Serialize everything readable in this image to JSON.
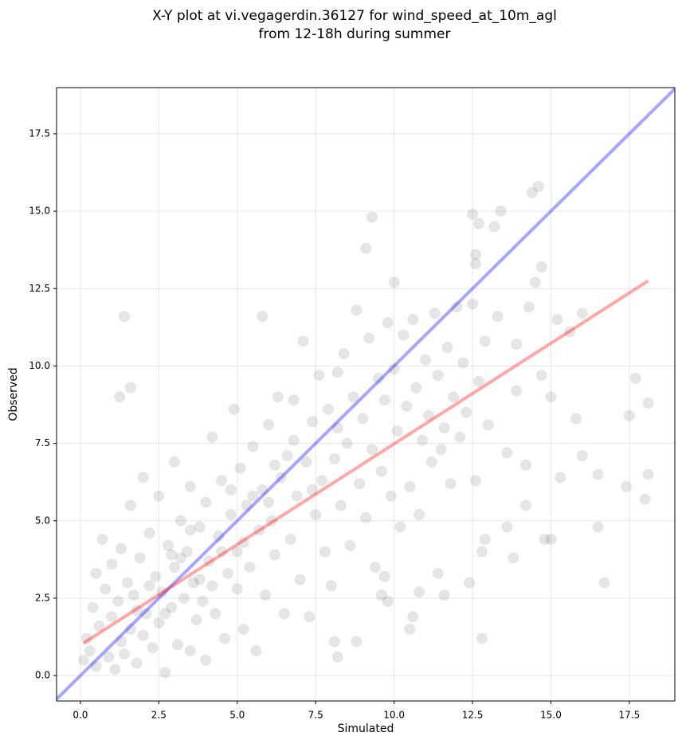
{
  "chart_data": {
    "type": "scatter",
    "title": [
      "X-Y plot at vi.vegagerdin.36127 for wind_speed_at_10m_agl",
      "from 12-18h during summer"
    ],
    "x_label": "Simulated",
    "y_label": "Observed",
    "xlim": [
      -0.76,
      18.95
    ],
    "ylim": [
      -0.82,
      18.99
    ],
    "xticks": [
      {
        "value": 0,
        "label": "0.0"
      },
      2.5,
      {
        "value": 5,
        "label": "5.0"
      },
      7.5,
      {
        "value": 10,
        "label": "10.0"
      },
      12.5,
      {
        "value": 15,
        "label": "15.0"
      },
      17.5
    ],
    "yticks": [
      {
        "value": 0,
        "label": "0.0"
      },
      2.5,
      {
        "value": 5,
        "label": "5.0"
      },
      7.5,
      {
        "value": 10,
        "label": "10.0"
      },
      12.5,
      {
        "value": 15,
        "label": "15.0"
      },
      17.5
    ],
    "grid": true,
    "points": {
      "color": "#000000",
      "x": [
        1.4,
        1.25,
        1.6,
        9.3,
        9.1,
        12.5,
        12.7,
        13.2,
        13.4,
        14.4,
        14.6,
        12.6,
        12.6,
        10.0,
        5.8,
        17.7,
        18.1,
        17.5,
        18.1,
        18.0,
        17.4,
        16.5,
        16.5,
        16.7,
        15.0,
        12.8,
        12.4,
        8.2,
        8.1,
        8.8,
        10.5,
        10.6,
        10.8,
        14.7,
        15.0,
        15.6,
        15.2,
        16.0,
        15.8,
        16.0,
        14.5,
        14.7,
        13.9,
        14.3,
        15.3,
        14.2,
        14.8,
        13.6,
        13.8,
        12.8,
        12.9,
        11.6,
        11.4,
        9.8,
        9.7,
        9.6,
        0.1,
        0.2,
        0.3,
        0.4,
        0.5,
        0.5,
        0.6,
        0.7,
        0.8,
        0.9,
        1.0,
        1.0,
        1.1,
        1.2,
        1.3,
        1.3,
        1.4,
        1.5,
        1.6,
        1.6,
        1.7,
        1.8,
        1.9,
        2.0,
        2.0,
        2.1,
        2.2,
        2.3,
        2.4,
        2.5,
        2.5,
        2.6,
        2.7,
        2.8,
        2.9,
        3.0,
        3.0,
        3.1,
        3.2,
        3.3,
        3.4,
        3.5,
        3.5,
        3.6,
        3.7,
        3.8,
        3.9,
        4.0,
        4.0,
        4.1,
        4.2,
        4.3,
        4.4,
        4.5,
        4.6,
        4.7,
        4.8,
        4.9,
        5.0,
        5.0,
        5.1,
        5.2,
        5.3,
        5.4,
        5.5,
        5.6,
        5.7,
        5.8,
        5.9,
        6.0,
        6.1,
        6.2,
        6.3,
        6.4,
        6.5,
        6.6,
        6.7,
        6.8,
        6.9,
        7.0,
        7.1,
        7.2,
        7.3,
        7.4,
        7.5,
        7.6,
        7.7,
        7.8,
        7.9,
        8.0,
        8.1,
        8.2,
        8.3,
        8.4,
        8.5,
        8.6,
        8.7,
        8.8,
        8.9,
        9.0,
        9.1,
        9.2,
        9.3,
        9.4,
        9.5,
        9.6,
        9.7,
        9.8,
        9.9,
        10.0,
        10.1,
        10.2,
        10.3,
        10.4,
        10.5,
        10.6,
        10.7,
        10.8,
        10.9,
        11.0,
        11.1,
        11.2,
        11.3,
        11.4,
        11.5,
        11.6,
        11.7,
        11.8,
        11.9,
        12.0,
        12.1,
        12.2,
        12.3,
        12.5,
        12.6,
        12.7,
        12.9,
        13.0,
        13.3,
        13.6,
        13.9,
        14.2,
        2.2,
        3.2,
        2.7,
        4.5,
        5.5,
        6.2,
        3.8,
        1.8,
        2.9,
        4.2,
        5.2,
        6.0,
        6.8,
        7.4,
        8.2,
        3.5,
        4.8
      ],
      "y": [
        11.6,
        9.0,
        9.3,
        14.8,
        13.8,
        14.9,
        14.6,
        14.5,
        15.0,
        15.6,
        15.8,
        13.6,
        13.3,
        12.7,
        11.6,
        9.6,
        8.8,
        8.4,
        6.5,
        5.7,
        6.1,
        6.5,
        4.8,
        3.0,
        4.4,
        1.2,
        3.0,
        0.6,
        1.1,
        1.1,
        1.5,
        1.9,
        2.7,
        9.7,
        9.0,
        11.1,
        11.5,
        11.7,
        8.3,
        7.1,
        12.7,
        13.2,
        10.7,
        11.9,
        6.4,
        5.5,
        4.4,
        4.8,
        3.8,
        4.0,
        4.4,
        2.6,
        3.3,
        2.4,
        3.2,
        2.6,
        0.5,
        1.2,
        0.8,
        2.2,
        0.3,
        3.3,
        1.6,
        4.4,
        2.8,
        0.6,
        1.9,
        3.6,
        0.2,
        2.4,
        1.1,
        4.1,
        0.7,
        3.0,
        1.5,
        5.5,
        2.6,
        0.4,
        3.8,
        1.3,
        6.4,
        2.0,
        4.6,
        0.9,
        3.2,
        5.8,
        1.7,
        2.7,
        0.1,
        4.2,
        2.2,
        6.9,
        3.5,
        1.0,
        5.0,
        2.5,
        4.0,
        0.8,
        6.1,
        3.0,
        1.8,
        4.8,
        2.4,
        5.6,
        0.5,
        3.7,
        7.7,
        2.0,
        4.5,
        6.3,
        1.2,
        3.3,
        5.2,
        8.6,
        2.8,
        4.0,
        6.7,
        1.5,
        5.5,
        3.5,
        7.4,
        0.8,
        4.7,
        6.0,
        2.6,
        8.1,
        5.0,
        3.9,
        9.0,
        6.4,
        2.0,
        7.1,
        4.4,
        8.9,
        5.8,
        3.1,
        10.8,
        6.9,
        1.9,
        8.2,
        5.2,
        9.7,
        6.3,
        4.0,
        8.6,
        2.9,
        7.0,
        9.8,
        5.5,
        10.4,
        7.5,
        4.2,
        9.0,
        11.8,
        6.2,
        8.3,
        5.1,
        10.9,
        7.3,
        3.5,
        9.6,
        6.6,
        8.9,
        11.4,
        5.8,
        9.9,
        7.9,
        4.8,
        11.0,
        8.7,
        6.1,
        11.5,
        9.3,
        5.2,
        7.6,
        10.2,
        8.4,
        6.9,
        11.7,
        9.7,
        7.3,
        8.0,
        10.6,
        6.2,
        9.0,
        11.9,
        7.7,
        10.1,
        8.5,
        12.0,
        6.3,
        9.5,
        10.8,
        8.1,
        11.6,
        7.2,
        9.2,
        6.8,
        2.9,
        3.8,
        2.0,
        4.0,
        5.8,
        6.8,
        3.1,
        2.1,
        3.9,
        2.9,
        4.3,
        5.6,
        7.6,
        6.0,
        8.0,
        4.7,
        6.0
      ]
    },
    "lines": [
      {
        "color": "#0000ff",
        "x": [
          -0.76,
          18.95
        ],
        "y": [
          -0.76,
          18.95
        ]
      },
      {
        "color": "#ff0000",
        "x": [
          0.1,
          18.1
        ],
        "y": [
          1.05,
          12.75
        ]
      }
    ]
  }
}
